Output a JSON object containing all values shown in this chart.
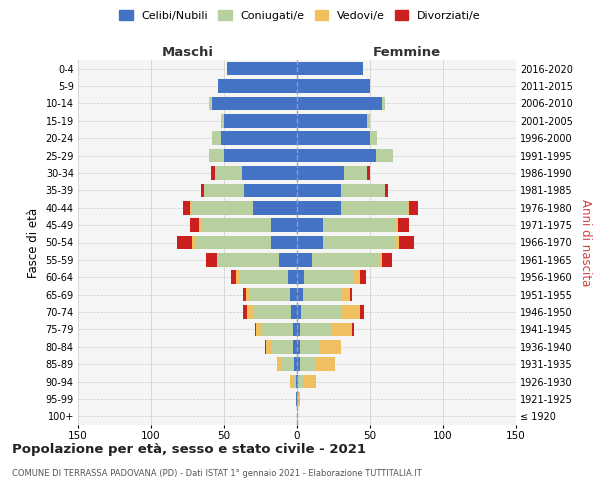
{
  "age_groups": [
    "100+",
    "95-99",
    "90-94",
    "85-89",
    "80-84",
    "75-79",
    "70-74",
    "65-69",
    "60-64",
    "55-59",
    "50-54",
    "45-49",
    "40-44",
    "35-39",
    "30-34",
    "25-29",
    "20-24",
    "15-19",
    "10-14",
    "5-9",
    "0-4"
  ],
  "birth_years": [
    "≤ 1920",
    "1921-1925",
    "1926-1930",
    "1931-1935",
    "1936-1940",
    "1941-1945",
    "1946-1950",
    "1951-1955",
    "1956-1960",
    "1961-1965",
    "1966-1970",
    "1971-1975",
    "1976-1980",
    "1981-1985",
    "1986-1990",
    "1991-1995",
    "1996-2000",
    "2001-2005",
    "2006-2010",
    "2011-2015",
    "2016-2020"
  ],
  "maschi_celibi": [
    0,
    1,
    1,
    2,
    3,
    3,
    4,
    5,
    6,
    12,
    18,
    18,
    30,
    36,
    38,
    50,
    52,
    50,
    58,
    54,
    48
  ],
  "maschi_coniugati": [
    0,
    0,
    2,
    8,
    14,
    22,
    26,
    28,
    34,
    42,
    52,
    48,
    42,
    28,
    18,
    10,
    6,
    2,
    2,
    0,
    0
  ],
  "maschi_vedovi": [
    0,
    0,
    2,
    4,
    4,
    3,
    4,
    2,
    2,
    1,
    2,
    1,
    1,
    0,
    0,
    0,
    0,
    0,
    0,
    0,
    0
  ],
  "maschi_divorziati": [
    0,
    0,
    0,
    0,
    1,
    1,
    3,
    2,
    3,
    7,
    10,
    6,
    5,
    2,
    3,
    0,
    0,
    0,
    0,
    0,
    0
  ],
  "femmine_celibi": [
    0,
    0,
    1,
    2,
    2,
    2,
    3,
    4,
    5,
    10,
    18,
    18,
    30,
    30,
    32,
    54,
    50,
    48,
    58,
    50,
    45
  ],
  "femmine_coniugati": [
    0,
    1,
    4,
    10,
    14,
    22,
    28,
    26,
    34,
    46,
    50,
    50,
    46,
    30,
    16,
    12,
    5,
    2,
    2,
    0,
    0
  ],
  "femmine_vedovi": [
    1,
    1,
    8,
    14,
    14,
    14,
    12,
    6,
    4,
    2,
    2,
    1,
    1,
    0,
    0,
    0,
    0,
    0,
    0,
    0,
    0
  ],
  "femmine_divorziati": [
    0,
    0,
    0,
    0,
    0,
    1,
    3,
    2,
    4,
    7,
    10,
    8,
    6,
    2,
    2,
    0,
    0,
    0,
    0,
    0,
    0
  ],
  "color_celibi": "#4472c4",
  "color_coniugati": "#b8cfa0",
  "color_vedovi": "#f0c060",
  "color_divorziati": "#cc2020",
  "color_background": "#f5f5f5",
  "color_grid": "#cccccc",
  "color_center_line": "#9999bb",
  "xlim": 150,
  "title": "Popolazione per età, sesso e stato civile - 2021",
  "subtitle": "COMUNE DI TERRASSA PADOVANA (PD) - Dati ISTAT 1° gennaio 2021 - Elaborazione TUTTITALIA.IT",
  "ylabel_left": "Fasce di età",
  "ylabel_right": "Anni di nascita",
  "label_maschi": "Maschi",
  "label_femmine": "Femmine",
  "legend_labels": [
    "Celibi/Nubili",
    "Coniugati/e",
    "Vedovi/e",
    "Divorziati/e"
  ]
}
